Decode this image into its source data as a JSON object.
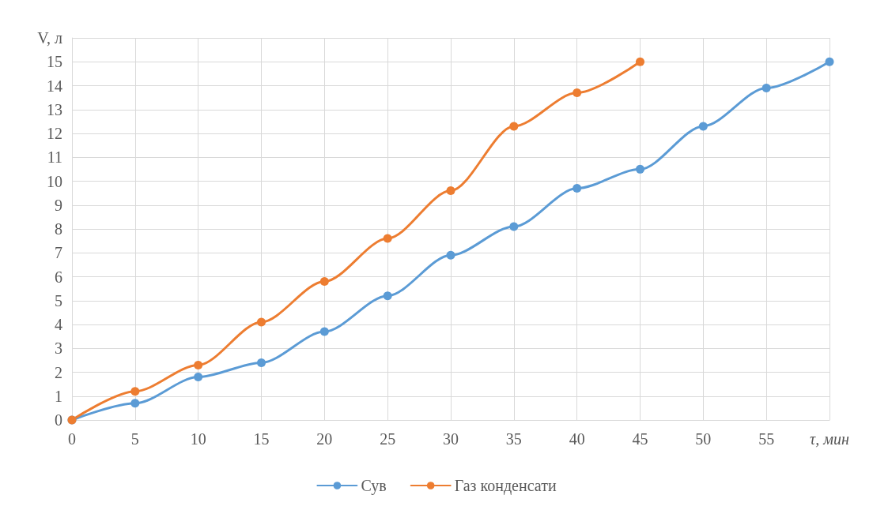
{
  "chart_data": {
    "type": "line",
    "xlabel": "τ, мин",
    "ylabel": "V, л",
    "x": [
      0,
      5,
      10,
      15,
      20,
      25,
      30,
      35,
      40,
      45,
      50,
      55,
      60
    ],
    "series": [
      {
        "name": "Сув",
        "color": "#5b9bd5",
        "values": [
          0,
          0.7,
          1.8,
          2.4,
          3.7,
          5.2,
          6.9,
          8.1,
          9.7,
          10.5,
          12.3,
          13.9,
          15
        ]
      },
      {
        "name": "Газ конденсати",
        "color": "#ed7d31",
        "values": [
          0,
          1.2,
          2.3,
          4.1,
          5.8,
          7.6,
          9.6,
          12.3,
          13.7,
          15,
          null,
          null,
          null
        ]
      }
    ],
    "xlim": [
      0,
      60
    ],
    "xticks": [
      0,
      5,
      10,
      15,
      20,
      25,
      30,
      35,
      40,
      45,
      50,
      55,
      {
        "value": 60,
        "label": null
      }
    ],
    "ylim": [
      0,
      16
    ],
    "yticks": [
      0,
      1,
      2,
      3,
      4,
      5,
      6,
      7,
      8,
      9,
      10,
      11,
      12,
      13,
      14,
      15,
      {
        "value": 16,
        "label": null
      }
    ],
    "grid": true,
    "legend": "bottom",
    "marker": "circle",
    "line_style": "solid"
  }
}
